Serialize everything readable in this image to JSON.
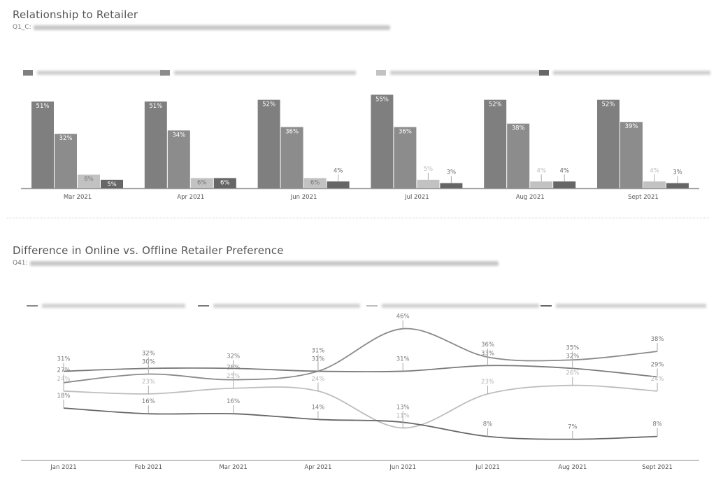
{
  "chart_data": [
    {
      "type": "bar",
      "title": "Relationship to Retailer",
      "subtitle_prefix": "Q1_C:",
      "categories": [
        "Mar 2021",
        "Apr 2021",
        "Jun 2021",
        "Jul 2021",
        "Aug 2021",
        "Sept 2021"
      ],
      "series": [
        {
          "name": "",
          "color": "#7f7f7f",
          "values": [
            51,
            51,
            52,
            55,
            52,
            52
          ]
        },
        {
          "name": "",
          "color": "#8c8c8c",
          "values": [
            32,
            34,
            36,
            36,
            38,
            39
          ]
        },
        {
          "name": "",
          "color": "#c2c2c2",
          "values": [
            8,
            6,
            6,
            5,
            4,
            4
          ]
        },
        {
          "name": "",
          "color": "#666666",
          "values": [
            5,
            6,
            4,
            3,
            4,
            3
          ]
        }
      ],
      "value_suffix": "%",
      "legend": "top",
      "grid": false
    },
    {
      "type": "line",
      "title": "Difference in Online vs. Offline Retailer Preference",
      "subtitle_prefix": "Q41:",
      "categories": [
        "Jan 2021",
        "Feb 2021",
        "Mar 2021",
        "Apr 2021",
        "Jun 2021",
        "Jul 2021",
        "Aug 2021",
        "Sept 2021"
      ],
      "series": [
        {
          "name": "",
          "color": "#8a8a8a",
          "values": [
            27,
            30,
            28,
            31,
            46,
            36,
            35,
            38
          ]
        },
        {
          "name": "",
          "color": "#7a7a7a",
          "values": [
            31,
            32,
            32,
            31,
            31,
            33,
            32,
            29
          ]
        },
        {
          "name": "",
          "color": "#bdbdbd",
          "values": [
            24,
            23,
            25,
            24,
            11,
            23,
            26,
            24
          ]
        },
        {
          "name": "",
          "color": "#666666",
          "values": [
            18,
            16,
            16,
            14,
            13,
            8,
            7,
            8
          ]
        }
      ],
      "value_suffix": "%",
      "legend": "top",
      "grid": false
    }
  ]
}
